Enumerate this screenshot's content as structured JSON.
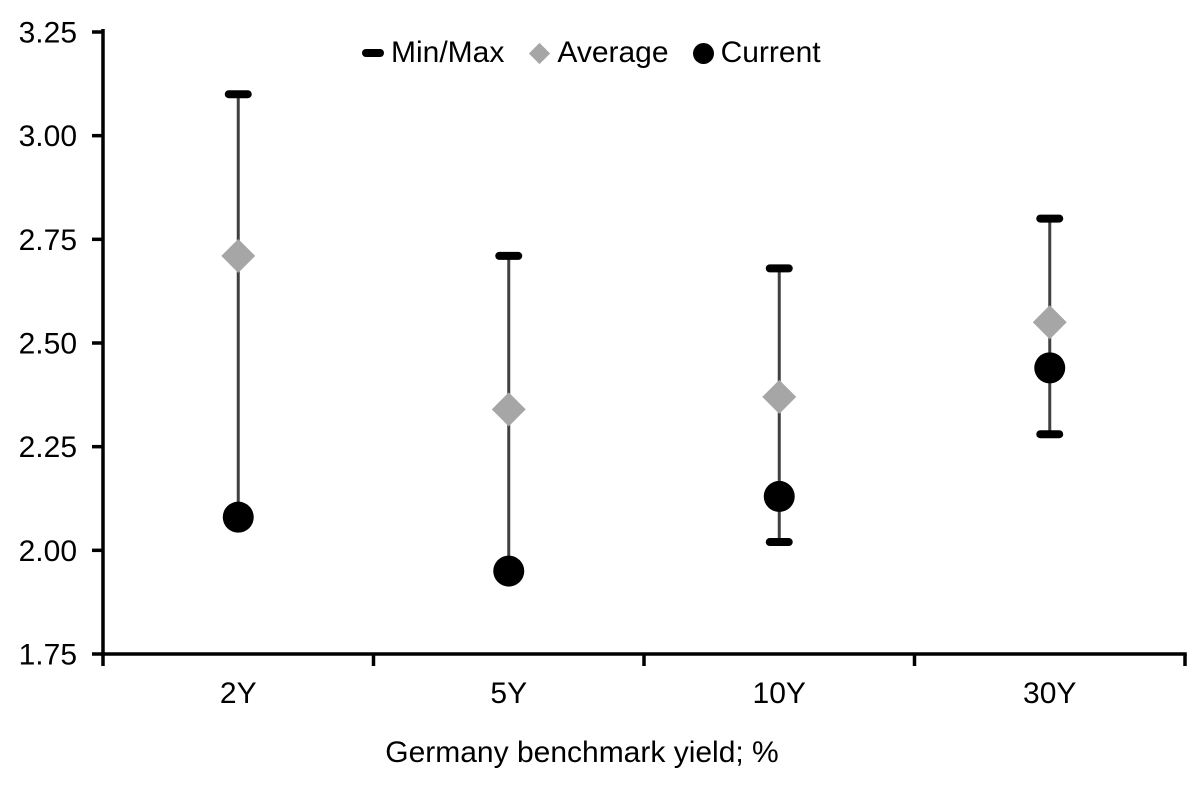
{
  "chart_data": {
    "type": "scatter",
    "subtype": "min-max-range-with-markers",
    "title": "",
    "xlabel": "Germany benchmark yield; %",
    "ylabel": "",
    "categories": [
      "2Y",
      "5Y",
      "10Y",
      "30Y"
    ],
    "ylim": [
      1.75,
      3.25
    ],
    "yticks": [
      {
        "value": 3.25,
        "label": "3.25"
      },
      {
        "value": 3.0,
        "label": "3.00"
      },
      {
        "value": 2.75,
        "label": "2.75"
      },
      {
        "value": 2.5,
        "label": "2.50"
      },
      {
        "value": 2.25,
        "label": "2.25"
      },
      {
        "value": 2.0,
        "label": "2.00"
      },
      {
        "value": 1.75,
        "label": "1.75"
      }
    ],
    "grid": false,
    "legend_position": "top",
    "legend": [
      {
        "label": "Min/Max",
        "marker": "dash"
      },
      {
        "label": "Average",
        "marker": "diamond"
      },
      {
        "label": "Current",
        "marker": "circle"
      }
    ],
    "series": [
      {
        "name": "Min/Max",
        "type": "range",
        "max": [
          3.1,
          2.71,
          2.68,
          2.8
        ],
        "min": [
          2.08,
          1.95,
          2.02,
          2.28
        ]
      },
      {
        "name": "Average",
        "type": "point",
        "marker": "diamond",
        "values": [
          2.71,
          2.34,
          2.37,
          2.55
        ]
      },
      {
        "name": "Current",
        "type": "point",
        "marker": "circle",
        "values": [
          2.08,
          1.95,
          2.13,
          2.44
        ]
      }
    ],
    "colors": {
      "background": "#ffffff",
      "axis": "#000000",
      "text": "#000000",
      "range_line": "#404040",
      "min_max_cap": "#000000",
      "average_marker": "#a6a6a6",
      "current_marker": "#000000"
    }
  }
}
